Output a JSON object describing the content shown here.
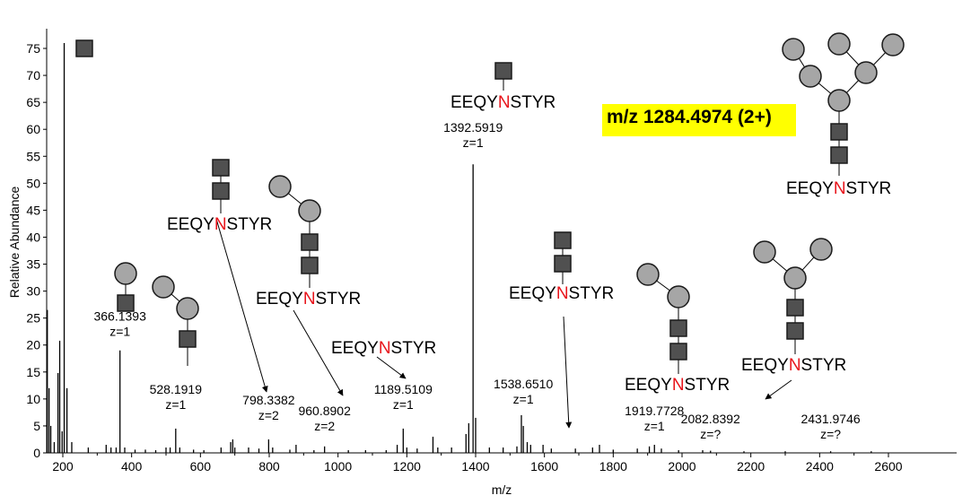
{
  "precursor_label": "m/z 1284.4974 (2+)",
  "peptide": {
    "prefix": "EEQY",
    "site": "N",
    "suffix": "STYR",
    "site_color": "#e8141b"
  },
  "colors": {
    "hexnac": "#505050",
    "hexose": "#a6a6a6",
    "outline": "#1a1a1a",
    "highlight": "#ffff00"
  },
  "chart_data": {
    "type": "line",
    "xlabel": "m/z",
    "ylabel": "Relative Abundance",
    "xlim": [
      150,
      2670
    ],
    "ylim": [
      0,
      80
    ],
    "xticks": [
      200,
      400,
      600,
      800,
      1000,
      1200,
      1400,
      1600,
      1800,
      2000,
      2200,
      2400,
      2600
    ],
    "yticks": [
      0,
      5,
      10,
      15,
      20,
      25,
      30,
      35,
      40,
      45,
      50,
      55,
      60,
      65,
      70,
      75
    ],
    "peaks": [
      [
        155,
        26.5
      ],
      [
        160,
        12
      ],
      [
        165,
        5
      ],
      [
        175,
        2
      ],
      [
        186,
        14.8
      ],
      [
        191,
        20.8
      ],
      [
        198,
        4
      ],
      [
        204,
        76
      ],
      [
        212,
        12
      ],
      [
        226,
        2
      ],
      [
        274,
        1
      ],
      [
        326,
        1.5
      ],
      [
        340,
        1
      ],
      [
        355,
        1
      ],
      [
        366.1393,
        19
      ],
      [
        380,
        1
      ],
      [
        410,
        0.6
      ],
      [
        440,
        0.6
      ],
      [
        470,
        0.5
      ],
      [
        500,
        1
      ],
      [
        512,
        1
      ],
      [
        528.1919,
        4.5
      ],
      [
        540,
        1
      ],
      [
        580,
        0.6
      ],
      [
        610,
        0.5
      ],
      [
        660,
        1
      ],
      [
        688,
        2
      ],
      [
        694,
        2.5
      ],
      [
        700,
        1
      ],
      [
        740,
        1
      ],
      [
        770,
        0.8
      ],
      [
        798.3382,
        2.5
      ],
      [
        810,
        1
      ],
      [
        860,
        0.6
      ],
      [
        878,
        1.5
      ],
      [
        930,
        0.5
      ],
      [
        960.8902,
        1.2
      ],
      [
        1030,
        0.5
      ],
      [
        1080,
        0.5
      ],
      [
        1140,
        0.5
      ],
      [
        1172,
        1.5
      ],
      [
        1189.5109,
        4.5
      ],
      [
        1200,
        1
      ],
      [
        1230,
        0.8
      ],
      [
        1276,
        3
      ],
      [
        1290,
        1
      ],
      [
        1330,
        1
      ],
      [
        1372,
        3.5
      ],
      [
        1380,
        5.5
      ],
      [
        1392.5919,
        53.5
      ],
      [
        1400,
        6.5
      ],
      [
        1440,
        1
      ],
      [
        1480,
        1
      ],
      [
        1520,
        1.2
      ],
      [
        1533,
        7
      ],
      [
        1538.651,
        5
      ],
      [
        1550,
        2
      ],
      [
        1560,
        1.5
      ],
      [
        1596,
        1.5
      ],
      [
        1620,
        0.8
      ],
      [
        1690,
        0.8
      ],
      [
        1740,
        1
      ],
      [
        1760,
        1.5
      ],
      [
        1800,
        0.6
      ],
      [
        1870,
        0.8
      ],
      [
        1905,
        1.2
      ],
      [
        1919.7728,
        1.5
      ],
      [
        1940,
        0.8
      ],
      [
        1990,
        0.5
      ],
      [
        2060,
        0.5
      ],
      [
        2082.8392,
        0.4
      ],
      [
        2180,
        0.3
      ],
      [
        2300,
        0.3
      ],
      [
        2431.9746,
        0.3
      ],
      [
        2550,
        0.3
      ]
    ],
    "peak_labels": [
      {
        "mz": "366.1393",
        "z": "z=1",
        "x": 366.1393,
        "y": 22
      },
      {
        "mz": "528.1919",
        "z": "z=1",
        "x": 528.1919,
        "y": 8.5
      },
      {
        "mz": "798.3382",
        "z": "z=2",
        "x": 798.3382,
        "y": 6.5
      },
      {
        "mz": "960.8902",
        "z": "z=2",
        "x": 960.8902,
        "y": 4.5
      },
      {
        "mz": "1189.5109",
        "z": "z=1",
        "x": 1189.5109,
        "y": 8.5
      },
      {
        "mz": "1392.5919",
        "z": "z=1",
        "x": 1392.5919,
        "y": 57
      },
      {
        "mz": "1538.6510",
        "z": "z=1",
        "x": 1538.651,
        "y": 9.5
      },
      {
        "mz": "1919.7728",
        "z": "z=1",
        "x": 1919.7728,
        "y": 4.5
      },
      {
        "mz": "2082.8392",
        "z": "z=?",
        "x": 2082.8392,
        "y": 3
      },
      {
        "mz": "2431.9746",
        "z": "z=?",
        "x": 2431.9746,
        "y": 3
      }
    ],
    "grid": false,
    "legend": "none"
  }
}
